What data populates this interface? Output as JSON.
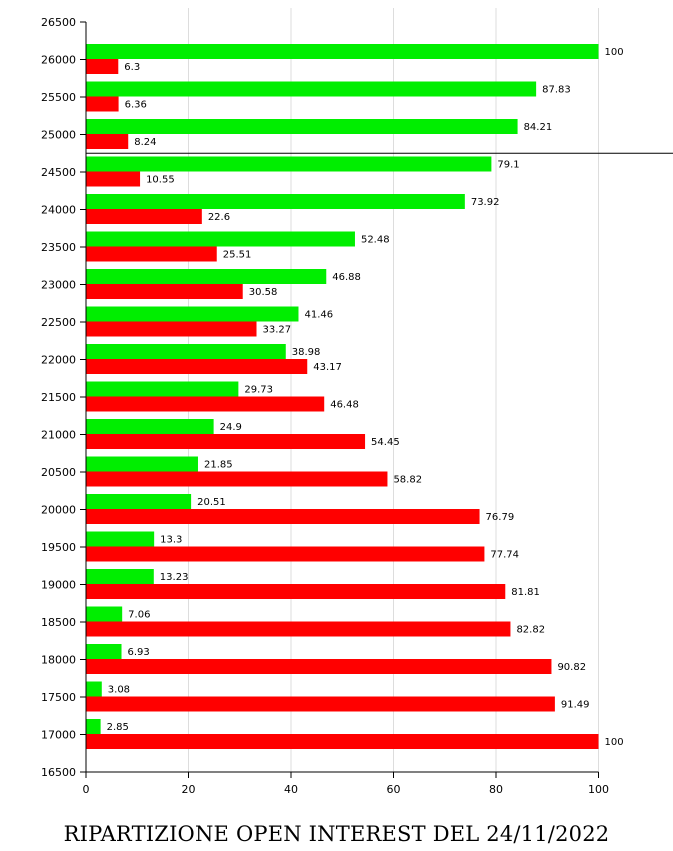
{
  "chart_data": {
    "type": "bar",
    "orientation": "horizontal",
    "title": "RIPARTIZIONE OPEN INTEREST DEL 24/11/2022",
    "categories": [
      "26000",
      "25500",
      "25000",
      "24500",
      "24000",
      "23500",
      "23000",
      "22500",
      "22000",
      "21500",
      "21000",
      "20500",
      "20000",
      "19500",
      "19000",
      "18500",
      "18000",
      "17500",
      "17000"
    ],
    "series": [
      {
        "color": "#00ee00",
        "values": [
          100,
          87.83,
          84.21,
          79.1,
          73.92,
          52.48,
          46.88,
          41.46,
          38.98,
          29.73,
          24.9,
          21.85,
          20.51,
          13.3,
          13.23,
          7.06,
          6.93,
          3.08,
          2.85
        ]
      },
      {
        "color": "#ff0000",
        "values": [
          6.3,
          6.36,
          8.24,
          10.55,
          22.6,
          25.51,
          30.58,
          33.27,
          43.17,
          46.48,
          54.45,
          58.82,
          76.79,
          77.74,
          81.81,
          82.82,
          90.82,
          91.49,
          100
        ]
      }
    ],
    "y_ticks": [
      "26500",
      "26000",
      "25500",
      "25000",
      "24500",
      "24000",
      "23500",
      "23000",
      "22500",
      "22000",
      "21500",
      "21000",
      "20500",
      "20000",
      "19500",
      "19000",
      "18500",
      "18000",
      "17500",
      "17000",
      "16500"
    ],
    "xlim": [
      0,
      100
    ],
    "x_ticks": [
      0,
      20,
      40,
      60,
      80,
      100
    ],
    "ylim": [
      16500,
      26500
    ],
    "reference_line": 24750,
    "grid": "vertical"
  }
}
